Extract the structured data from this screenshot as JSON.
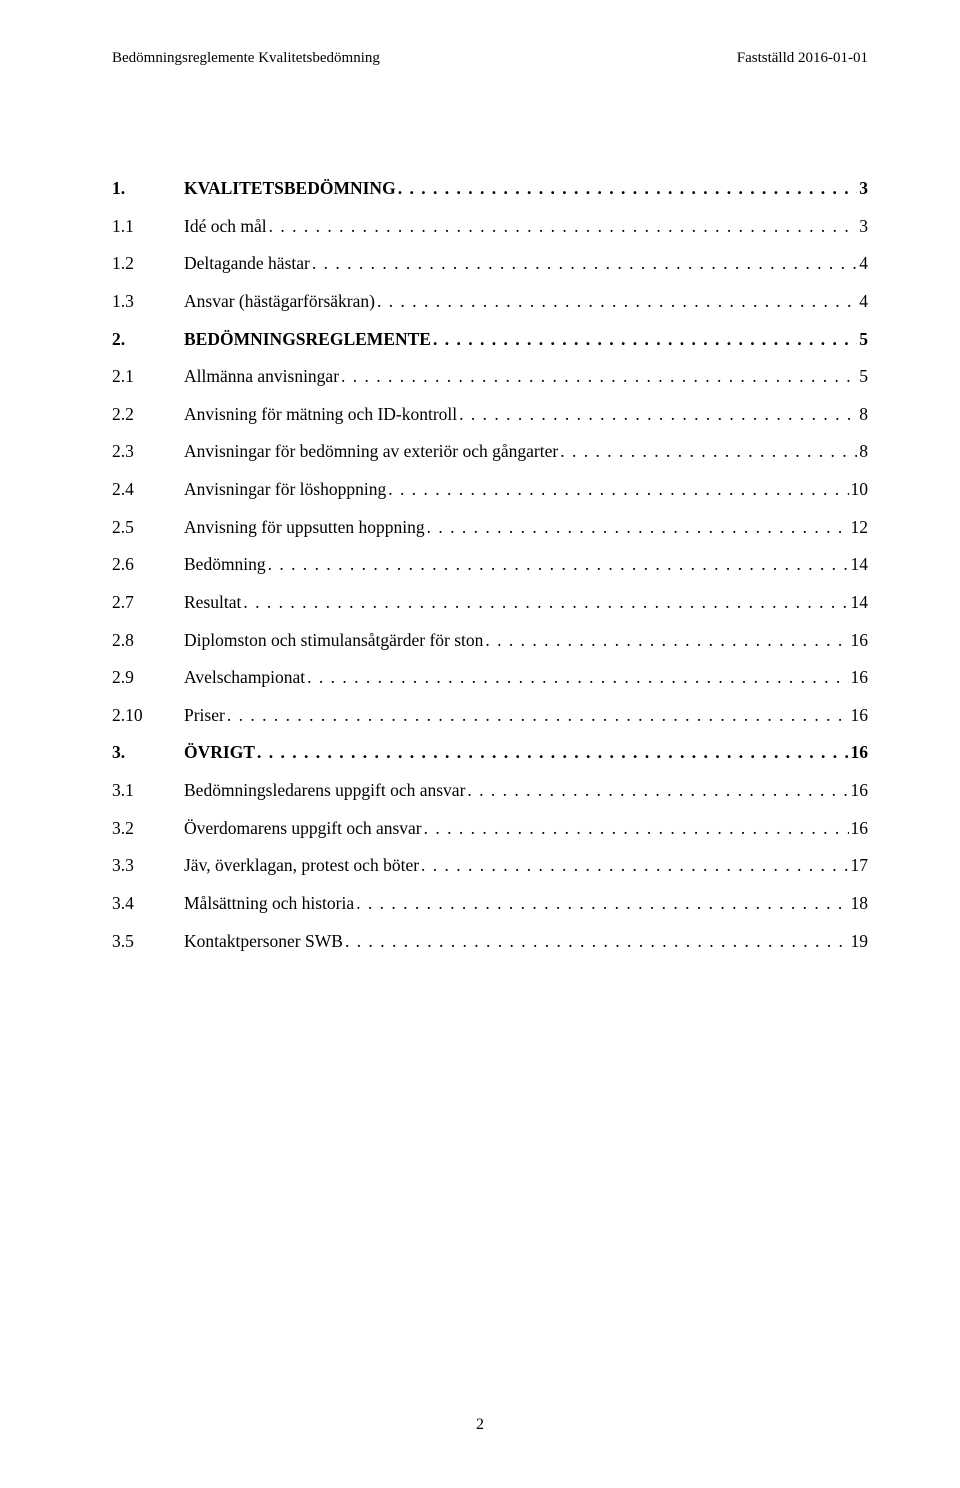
{
  "header": {
    "left": "Bedömningsreglemente Kvalitetsbedömning",
    "right": "Fastställd 2016-01-01"
  },
  "toc": [
    {
      "num": "1.",
      "title": "KVALITETSBEDÖMNING",
      "page": "3",
      "bold": true
    },
    {
      "num": "1.1",
      "title": "Idé och mål",
      "page": "3",
      "bold": false
    },
    {
      "num": "1.2",
      "title": "Deltagande hästar",
      "page": "4",
      "bold": false
    },
    {
      "num": "1.3",
      "title": "Ansvar (hästägarförsäkran)",
      "page": "4",
      "bold": false
    },
    {
      "num": "2.",
      "title": "BEDÖMNINGSREGLEMENTE",
      "page": "5",
      "bold": true
    },
    {
      "num": "2.1",
      "title": "Allmänna anvisningar",
      "page": "5",
      "bold": false
    },
    {
      "num": "2.2",
      "title": "Anvisning för mätning och ID-kontroll",
      "page": "8",
      "bold": false
    },
    {
      "num": "2.3",
      "title": "Anvisningar för bedömning av exteriör och gångarter",
      "page": "8",
      "bold": false
    },
    {
      "num": "2.4",
      "title": "Anvisningar för löshoppning",
      "page": "10",
      "bold": false
    },
    {
      "num": "2.5",
      "title": "Anvisning för uppsutten hoppning",
      "page": "12",
      "bold": false
    },
    {
      "num": "2.6",
      "title": "Bedömning",
      "page": "14",
      "bold": false
    },
    {
      "num": "2.7",
      "title": "Resultat",
      "page": "14",
      "bold": false
    },
    {
      "num": "2.8",
      "title": "Diplomston och stimulansåtgärder för ston",
      "page": "16",
      "bold": false
    },
    {
      "num": "2.9",
      "title": "Avelschampionat",
      "page": "16",
      "bold": false
    },
    {
      "num": "2.10",
      "title": "Priser",
      "page": "16",
      "bold": false
    },
    {
      "num": "3.",
      "title": "ÖVRIGT",
      "page": "16",
      "bold": true
    },
    {
      "num": "3.1",
      "title": "Bedömningsledarens uppgift och ansvar",
      "page": "16",
      "bold": false
    },
    {
      "num": "3.2",
      "title": "Överdomarens uppgift och ansvar",
      "page": "16",
      "bold": false
    },
    {
      "num": "3.3",
      "title": "Jäv, överklagan, protest och böter",
      "page": "17",
      "bold": false
    },
    {
      "num": "3.4",
      "title": "Målsättning och historia",
      "page": "18",
      "bold": false
    },
    {
      "num": "3.5",
      "title": "Kontaktpersoner SWB",
      "page": "19",
      "bold": false
    }
  ],
  "pageNumber": "2",
  "dotsFill": ". . . . . . . . . . . . . . . . . . . . . . . . . . . . . . . . . . . . . . . . . . . . . . . . . . . . . . . . . . . . . . . . . . . . . . . . . . . . . . . . . . . . . . . . . . . . . . . . . . . . . . . . . . . . . . . . . . . . . . . . . . . . . . . . . . . . . . . . . . . . . . . . . . . . . . . ."
}
